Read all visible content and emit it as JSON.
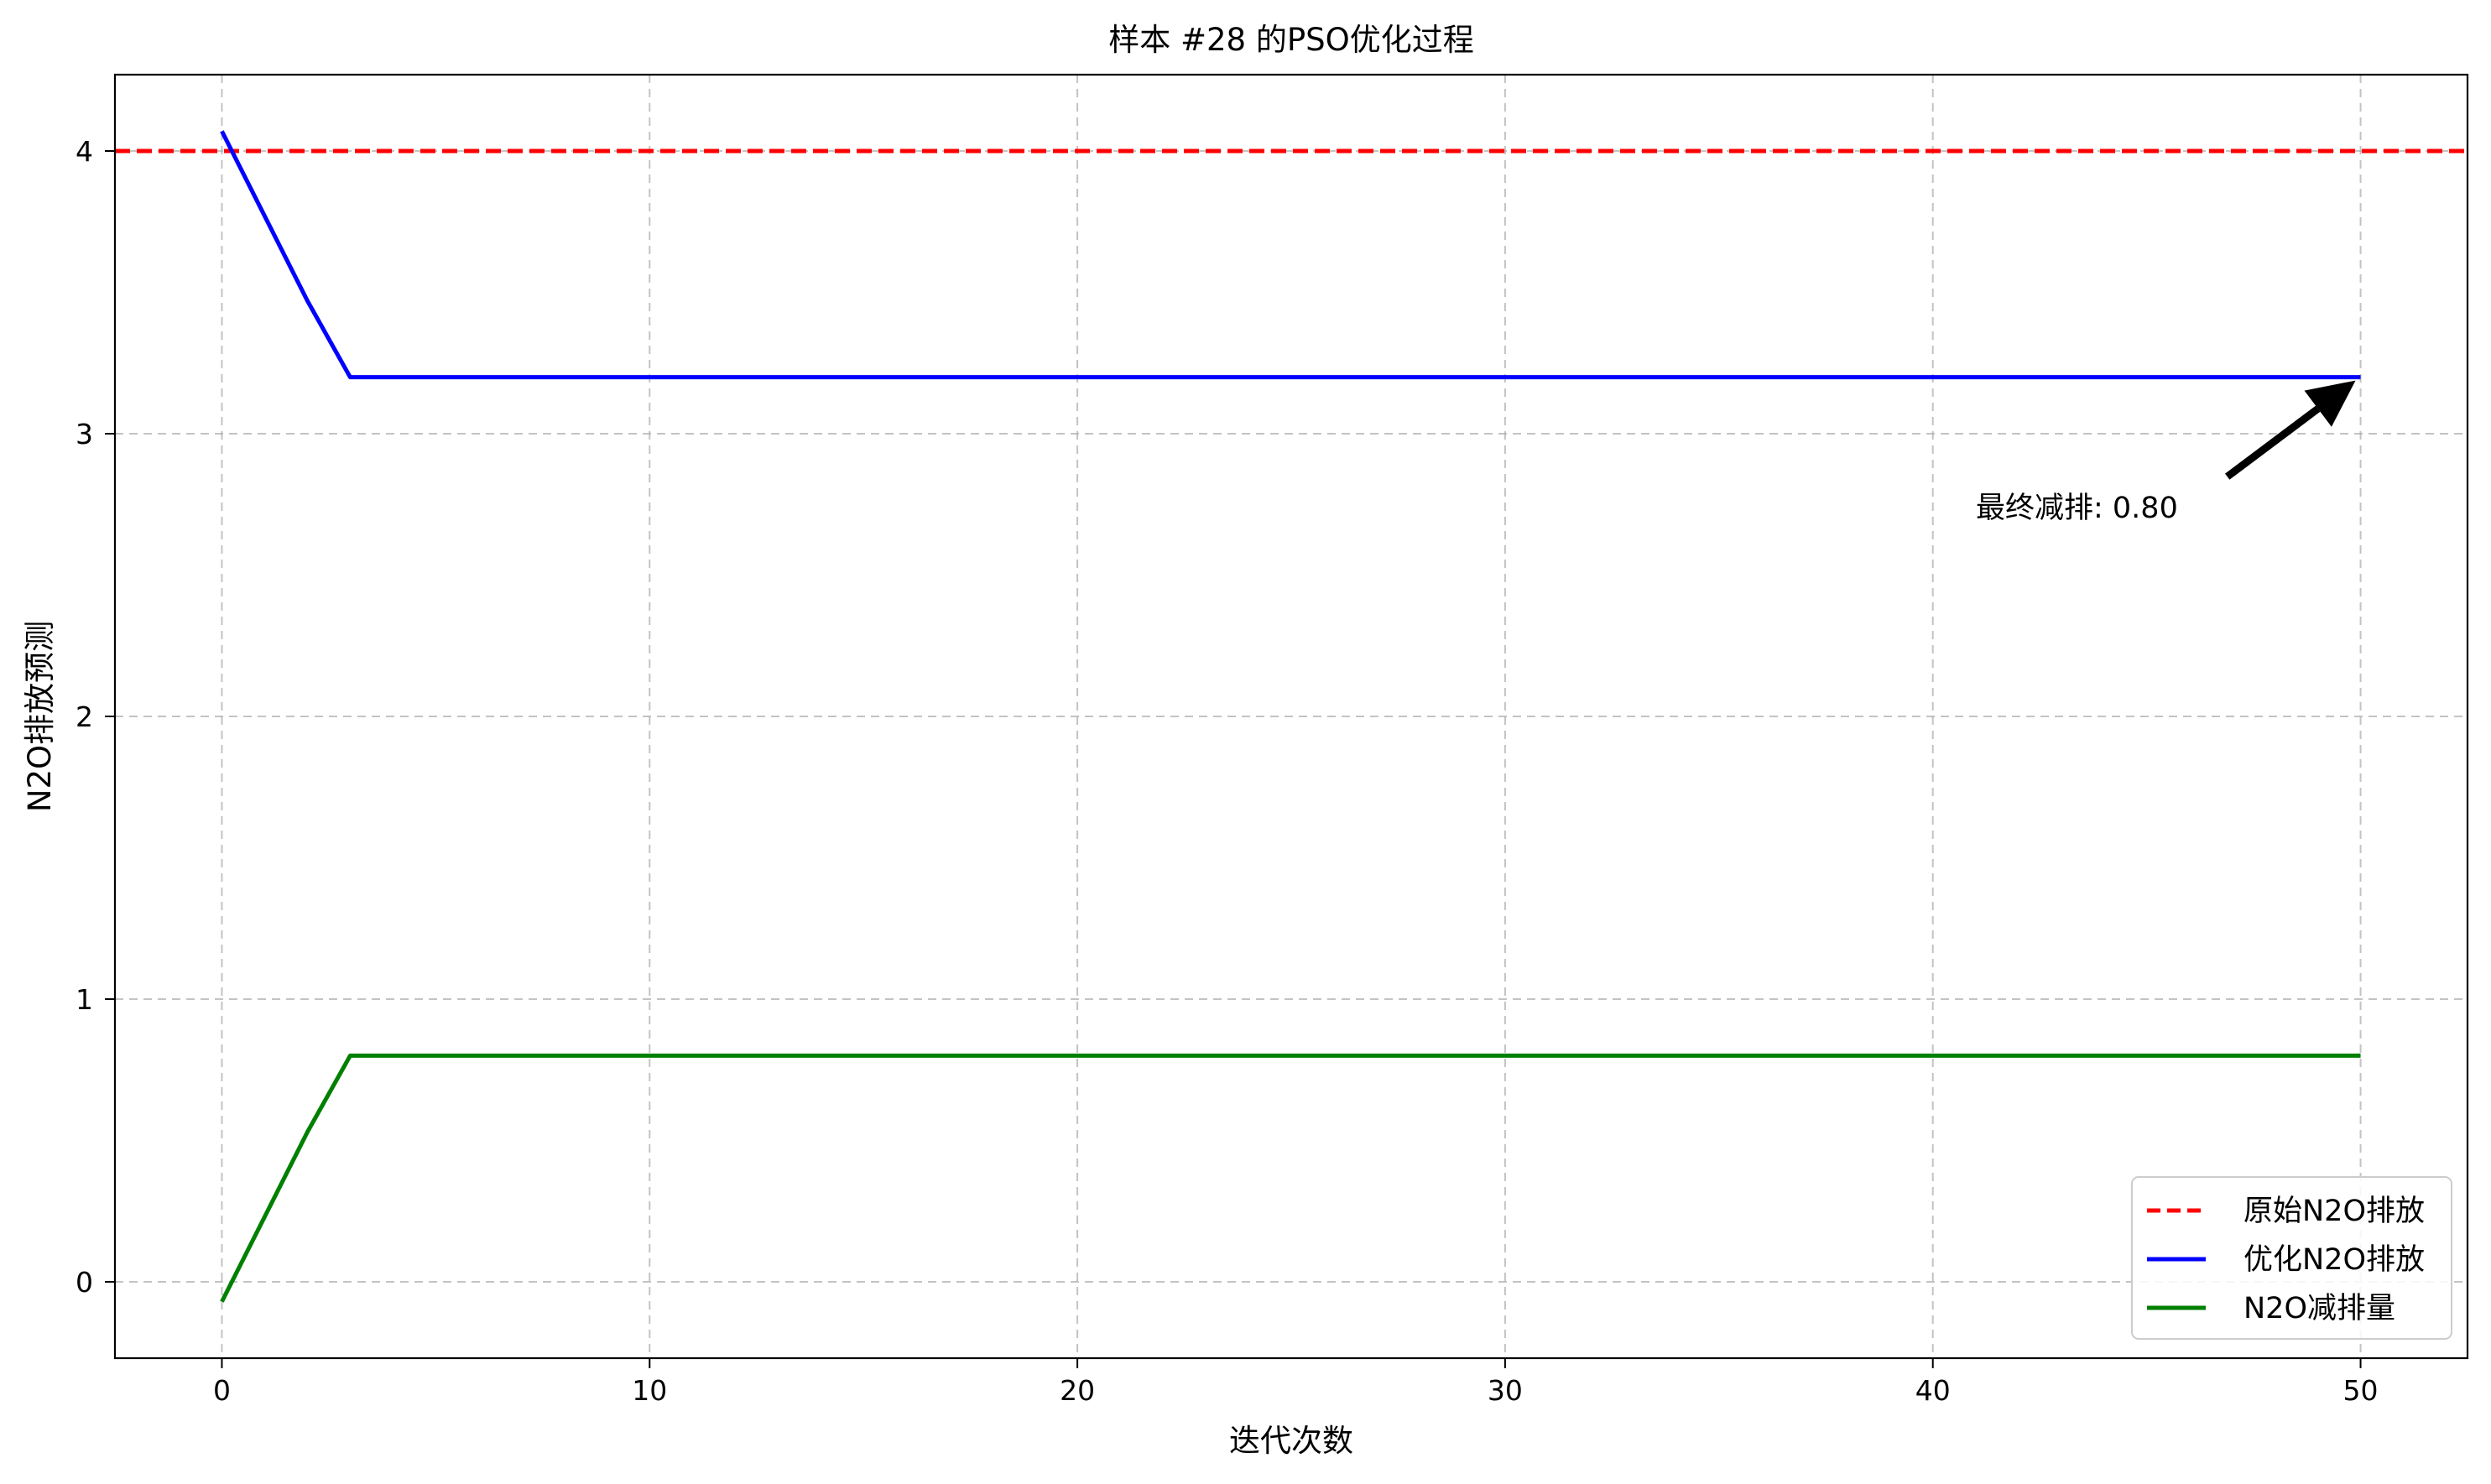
{
  "chart_data": {
    "type": "line",
    "title": "样本 #28 的PSO优化过程",
    "xlabel": "迭代次数",
    "ylabel": "N2O排放预测",
    "xlim": [
      -2.5,
      52.5
    ],
    "ylim": [
      -0.27,
      4.27
    ],
    "xticks": [
      0,
      10,
      20,
      30,
      40,
      50
    ],
    "yticks": [
      0,
      1,
      2,
      3,
      4
    ],
    "grid": true,
    "legend_position": "bottom-right",
    "series": [
      {
        "name": "原始N2O排放",
        "style": "dashed",
        "color": "#ff0000",
        "x": [
          -2.5,
          52.5
        ],
        "y": [
          4.0,
          4.0
        ]
      },
      {
        "name": "优化N2O排放",
        "style": "solid",
        "color": "#0000ff",
        "x": [
          0,
          1,
          2,
          3,
          10,
          20,
          30,
          40,
          50
        ],
        "y": [
          4.07,
          3.77,
          3.47,
          3.2,
          3.2,
          3.2,
          3.2,
          3.2,
          3.2
        ]
      },
      {
        "name": "N2O减排量",
        "style": "solid",
        "color": "#008000",
        "x": [
          0,
          1,
          2,
          3,
          10,
          20,
          30,
          40,
          50
        ],
        "y": [
          -0.07,
          0.23,
          0.53,
          0.8,
          0.8,
          0.8,
          0.8,
          0.8,
          0.8
        ]
      }
    ],
    "annotation": {
      "text": "最终减排: 0.80",
      "target": [
        50,
        3.2
      ],
      "text_anchor": [
        41,
        2.67
      ],
      "color": "#000000"
    }
  }
}
